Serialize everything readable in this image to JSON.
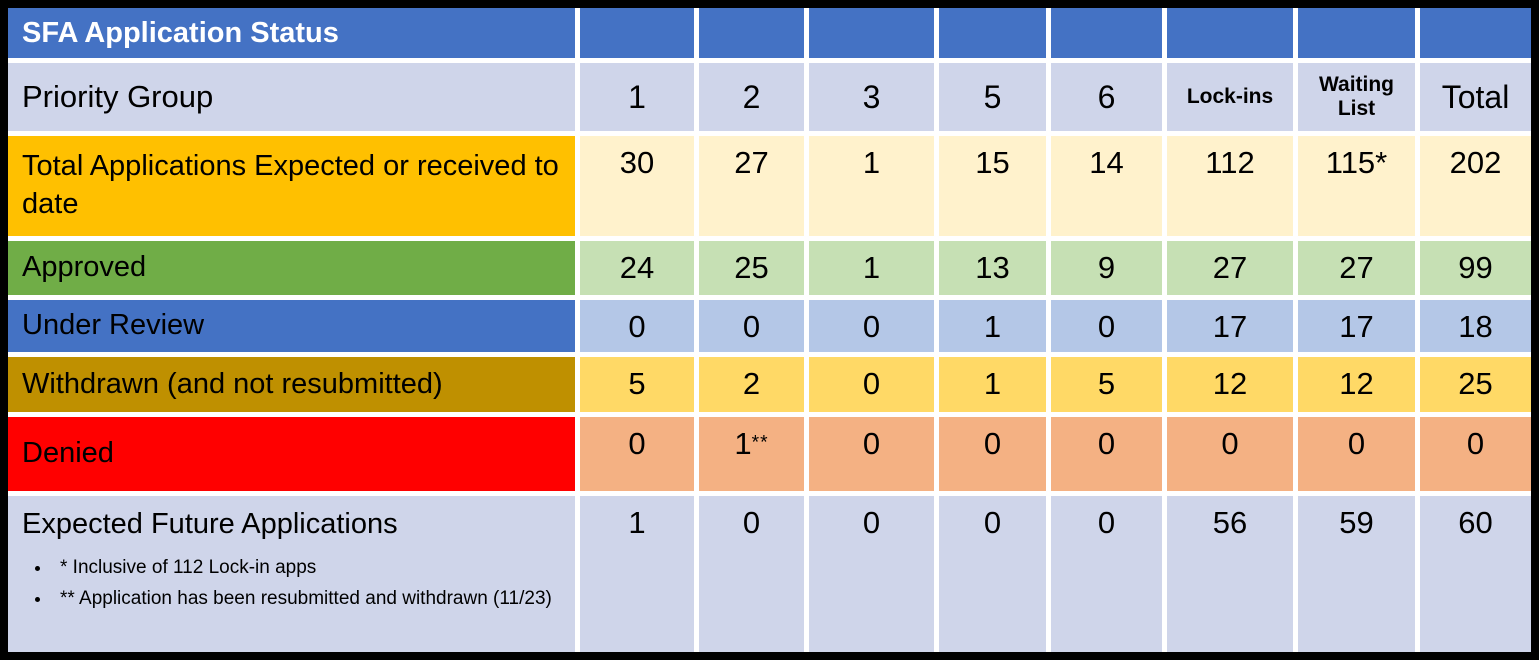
{
  "title": "SFA Application Status",
  "columns": {
    "label_header": "Priority Group",
    "data_headers": [
      "1",
      "2",
      "3",
      "5",
      "6",
      "Lock-ins",
      "Waiting List",
      "Total"
    ]
  },
  "rows": [
    {
      "id": "total-applications",
      "label": "Total Applications Expected or received to date",
      "values": [
        "30",
        "27",
        "1",
        "15",
        "14",
        "112",
        "115*",
        "202"
      ],
      "label_bg": "#FFC000",
      "cell_bg": "#FFF2CC"
    },
    {
      "id": "approved",
      "label": "Approved",
      "values": [
        "24",
        "25",
        "1",
        "13",
        "9",
        "27",
        "27",
        "99"
      ],
      "label_bg": "#70AD47",
      "cell_bg": "#C6E0B4"
    },
    {
      "id": "under-review",
      "label": "Under Review",
      "values": [
        "0",
        "0",
        "0",
        "1",
        "0",
        "17",
        "17",
        "18"
      ],
      "label_bg": "#4472C4",
      "cell_bg": "#B4C7E7"
    },
    {
      "id": "withdrawn",
      "label": "Withdrawn (and not resubmitted)",
      "values": [
        "5",
        "2",
        "0",
        "1",
        "5",
        "12",
        "12",
        "25"
      ],
      "label_bg": "#BF9000",
      "cell_bg": "#FFD966"
    },
    {
      "id": "denied",
      "label": "Denied",
      "values": [
        "0",
        "1**",
        "0",
        "0",
        "0",
        "0",
        "0",
        "0"
      ],
      "label_bg": "#FF0000",
      "cell_bg": "#F4B183"
    },
    {
      "id": "expected-future",
      "label": "Expected Future Applications",
      "values": [
        "1",
        "0",
        "0",
        "0",
        "0",
        "56",
        "59",
        "60"
      ],
      "label_bg": "#CFD5EA",
      "cell_bg": "#CFD5EA",
      "footnotes": [
        "* Inclusive of 112 Lock-in apps",
        "** Application has been resubmitted and withdrawn (11/23)"
      ]
    }
  ],
  "colors": {
    "header_bg": "#4472C4",
    "header_text": "#FFFFFF",
    "subheader_bg": "#CFD5EA",
    "frame": "#000000",
    "gap": "#FFFFFF",
    "text": "#000000"
  }
}
